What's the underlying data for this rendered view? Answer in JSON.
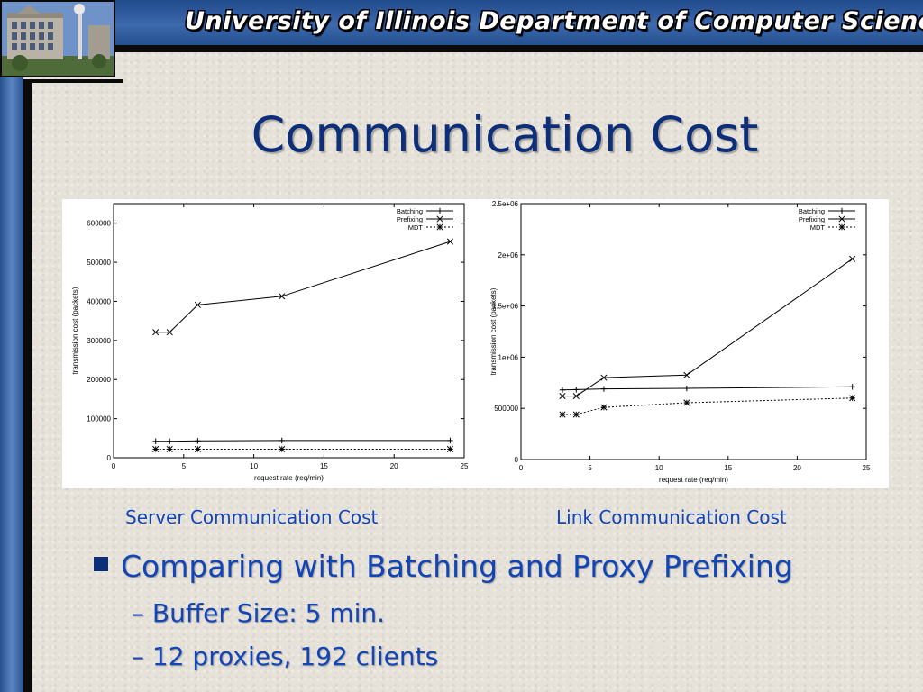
{
  "header": {
    "title": "University of Illinois Department of Computer Science"
  },
  "slide": {
    "title": "Communication Cost",
    "captions": [
      "Server Communication Cost",
      "Link Communication Cost"
    ],
    "bullet": "Comparing with Batching and Proxy Prefixing",
    "subbullets": [
      "Buffer Size: 5 min.",
      "12 proxies, 192 clients"
    ]
  },
  "colors": {
    "title": "#0d2f7a",
    "text": "#1245b8",
    "bar": "#3d69ad"
  },
  "chart_data": [
    {
      "type": "line",
      "xlabel": "request rate (req/min)",
      "ylabel": "transmission cost (packets)",
      "xlim": [
        0,
        25
      ],
      "ylim": [
        0,
        650000
      ],
      "xticks": [
        0,
        5,
        10,
        15,
        20,
        25
      ],
      "yticks": [
        0,
        100000,
        200000,
        300000,
        400000,
        500000,
        600000
      ],
      "ytick_labels": [
        "0",
        "100000",
        "200000",
        "300000",
        "400000",
        "500000",
        "600000"
      ],
      "legend_position": "top-right",
      "grid": false,
      "series": [
        {
          "name": "Batching",
          "marker": "plus",
          "dashed": false,
          "x": [
            3,
            4,
            6,
            12,
            24
          ],
          "y": [
            42000,
            42000,
            43000,
            44000,
            44000
          ]
        },
        {
          "name": "Prefixing",
          "marker": "cross",
          "dashed": false,
          "x": [
            3,
            4,
            6,
            12,
            24
          ],
          "y": [
            321000,
            321000,
            391000,
            413000,
            553000
          ]
        },
        {
          "name": "MDT",
          "marker": "star",
          "dashed": true,
          "x": [
            3,
            4,
            6,
            12,
            24
          ],
          "y": [
            22000,
            22000,
            22000,
            22000,
            22000
          ]
        }
      ]
    },
    {
      "type": "line",
      "xlabel": "request rate (req/min)",
      "ylabel": "transmission cost (packets)",
      "xlim": [
        0,
        25
      ],
      "ylim": [
        0,
        2500000
      ],
      "xticks": [
        0,
        5,
        10,
        15,
        20,
        25
      ],
      "yticks": [
        0,
        500000,
        1000000,
        1500000,
        2000000,
        2500000
      ],
      "ytick_labels": [
        "0",
        "500000",
        "1e+06",
        "1.5e+06",
        "2e+06",
        "2.5e+06"
      ],
      "legend_position": "top-right",
      "grid": false,
      "series": [
        {
          "name": "Batching",
          "marker": "plus",
          "dashed": false,
          "x": [
            3,
            4,
            6,
            12,
            24
          ],
          "y": [
            680000,
            683000,
            690000,
            695000,
            710000
          ]
        },
        {
          "name": "Prefixing",
          "marker": "cross",
          "dashed": false,
          "x": [
            3,
            4,
            6,
            12,
            24
          ],
          "y": [
            620000,
            620000,
            800000,
            825000,
            1960000
          ]
        },
        {
          "name": "MDT",
          "marker": "star",
          "dashed": true,
          "x": [
            3,
            4,
            6,
            12,
            24
          ],
          "y": [
            440000,
            440000,
            510000,
            555000,
            600000
          ]
        }
      ]
    }
  ]
}
